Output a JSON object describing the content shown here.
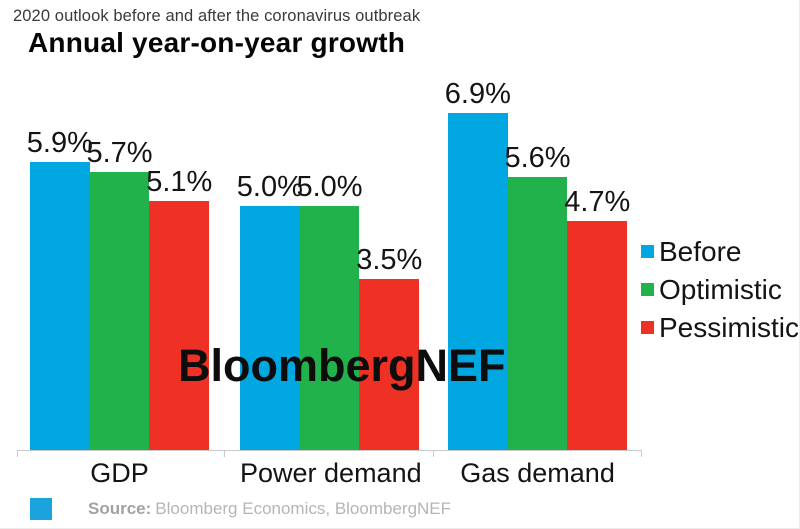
{
  "header": {
    "subtitle": "2020 outlook before and after the coronavirus outbreak",
    "title": "Annual year-on-year growth"
  },
  "chart_data": {
    "type": "bar",
    "title": "Annual year-on-year growth",
    "subtitle": "2020 outlook before and after the coronavirus outbreak",
    "categories": [
      "GDP",
      "Power demand",
      "Gas demand"
    ],
    "series": [
      {
        "name": "Before",
        "color": "#00a7e1",
        "values": [
          5.9,
          5.0,
          6.9
        ]
      },
      {
        "name": "Optimistic",
        "color": "#22b24c",
        "values": [
          5.7,
          5.0,
          5.6
        ]
      },
      {
        "name": "Pessimistic",
        "color": "#ee3124",
        "values": [
          5.1,
          3.5,
          4.7
        ]
      }
    ],
    "value_label_format": "percent_one_decimal",
    "xlabel": "",
    "ylabel": "",
    "ylim": [
      0,
      7.5
    ],
    "grid": false,
    "legend_position": "right",
    "value_labels_shown": true
  },
  "legend": {
    "items": [
      {
        "label": "Before",
        "color": "#00a7e1"
      },
      {
        "label": "Optimistic",
        "color": "#22b24c"
      },
      {
        "label": "Pessimistic",
        "color": "#ee3124"
      }
    ]
  },
  "watermark": "BloombergNEF",
  "footer": {
    "logo_color": "#1aa3dc",
    "source_label": "Source:",
    "source_text": "Bloomberg Economics, BloombergNEF"
  }
}
